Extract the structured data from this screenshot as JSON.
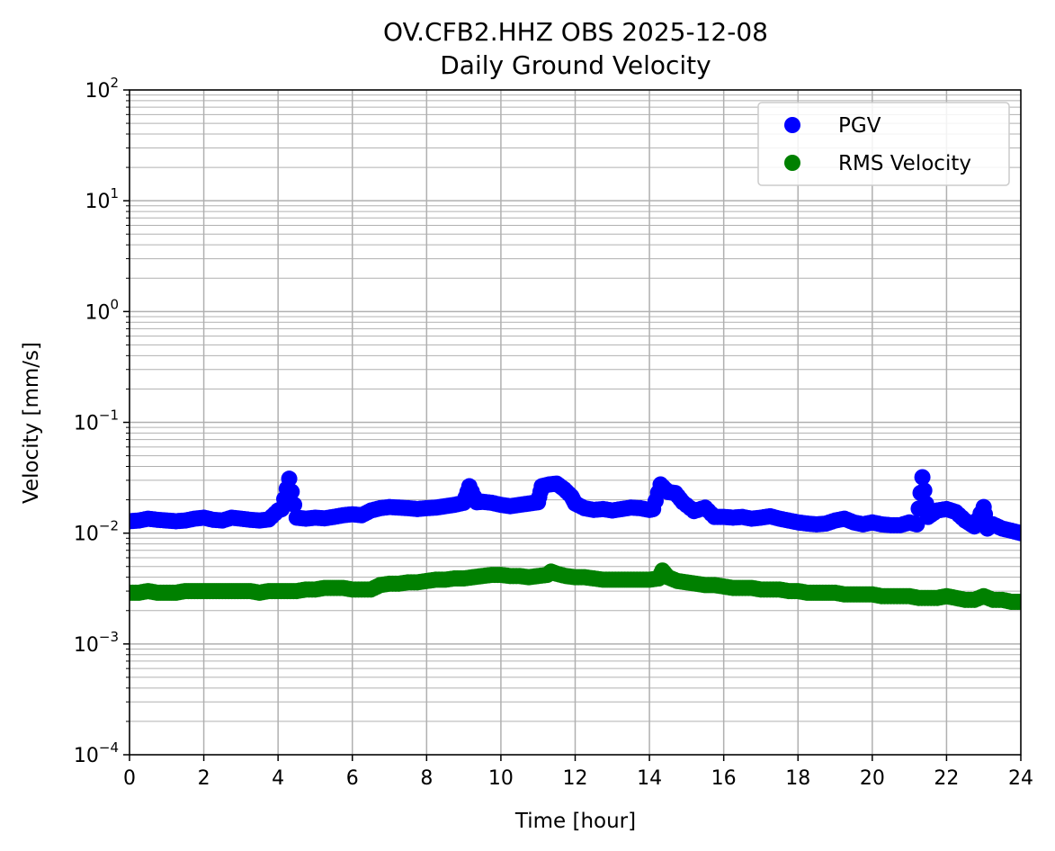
{
  "chart_data": {
    "type": "scatter",
    "title": "OV.CFB2.HHZ OBS 2025-12-08",
    "subtitle": "Daily Ground Velocity",
    "xlabel": "Time [hour]",
    "ylabel": "Velocity [mm/s]",
    "xlim": [
      0,
      24
    ],
    "ylim": [
      0.0001,
      100
    ],
    "yscale": "log",
    "grid": true,
    "legend_position": "top-right",
    "x_ticks": [
      "0",
      "2",
      "4",
      "6",
      "8",
      "10",
      "12",
      "14",
      "16",
      "18",
      "20",
      "22",
      "24"
    ],
    "y_ticks": [
      {
        "base": "10",
        "exp": "−4"
      },
      {
        "base": "10",
        "exp": "−3"
      },
      {
        "base": "10",
        "exp": "−2"
      },
      {
        "base": "10",
        "exp": "−1"
      },
      {
        "base": "10",
        "exp": "0"
      },
      {
        "base": "10",
        "exp": "1"
      },
      {
        "base": "10",
        "exp": "2"
      }
    ],
    "series": [
      {
        "name": "PGV",
        "color": "#0000ff",
        "points": [
          [
            0.0,
            0.0128
          ],
          [
            0.25,
            0.013
          ],
          [
            0.5,
            0.0135
          ],
          [
            0.75,
            0.0132
          ],
          [
            1.0,
            0.013
          ],
          [
            1.25,
            0.0128
          ],
          [
            1.5,
            0.013
          ],
          [
            1.75,
            0.0135
          ],
          [
            2.0,
            0.0138
          ],
          [
            2.25,
            0.0132
          ],
          [
            2.5,
            0.013
          ],
          [
            2.75,
            0.0138
          ],
          [
            3.0,
            0.0135
          ],
          [
            3.25,
            0.0132
          ],
          [
            3.5,
            0.013
          ],
          [
            3.75,
            0.0133
          ],
          [
            4.0,
            0.016
          ],
          [
            4.1,
            0.0165
          ],
          [
            4.3,
            0.031
          ],
          [
            4.5,
            0.0138
          ],
          [
            4.75,
            0.0135
          ],
          [
            5.0,
            0.0138
          ],
          [
            5.25,
            0.0136
          ],
          [
            5.5,
            0.014
          ],
          [
            5.75,
            0.0145
          ],
          [
            6.0,
            0.0148
          ],
          [
            6.25,
            0.0145
          ],
          [
            6.5,
            0.016
          ],
          [
            6.75,
            0.0168
          ],
          [
            7.0,
            0.0172
          ],
          [
            7.25,
            0.017
          ],
          [
            7.5,
            0.0168
          ],
          [
            7.75,
            0.0165
          ],
          [
            8.0,
            0.0168
          ],
          [
            8.25,
            0.017
          ],
          [
            8.5,
            0.0175
          ],
          [
            8.75,
            0.018
          ],
          [
            9.0,
            0.0188
          ],
          [
            9.15,
            0.0265
          ],
          [
            9.35,
            0.019
          ],
          [
            9.5,
            0.0192
          ],
          [
            9.75,
            0.0188
          ],
          [
            10.0,
            0.018
          ],
          [
            10.25,
            0.0175
          ],
          [
            10.5,
            0.018
          ],
          [
            10.75,
            0.0185
          ],
          [
            11.0,
            0.019
          ],
          [
            11.1,
            0.0265
          ],
          [
            11.3,
            0.0275
          ],
          [
            11.5,
            0.028
          ],
          [
            11.7,
            0.025
          ],
          [
            11.9,
            0.0215
          ],
          [
            12.0,
            0.0185
          ],
          [
            12.25,
            0.0168
          ],
          [
            12.5,
            0.0162
          ],
          [
            12.75,
            0.0165
          ],
          [
            13.0,
            0.016
          ],
          [
            13.25,
            0.0165
          ],
          [
            13.5,
            0.017
          ],
          [
            13.75,
            0.0168
          ],
          [
            14.0,
            0.0162
          ],
          [
            14.1,
            0.0165
          ],
          [
            14.3,
            0.0275
          ],
          [
            14.5,
            0.0235
          ],
          [
            14.7,
            0.023
          ],
          [
            14.9,
            0.019
          ],
          [
            15.2,
            0.0158
          ],
          [
            15.5,
            0.017
          ],
          [
            15.75,
            0.014
          ],
          [
            16.0,
            0.014
          ],
          [
            16.25,
            0.0138
          ],
          [
            16.5,
            0.014
          ],
          [
            16.75,
            0.0135
          ],
          [
            17.0,
            0.0138
          ],
          [
            17.25,
            0.0142
          ],
          [
            17.5,
            0.0135
          ],
          [
            17.75,
            0.013
          ],
          [
            18.0,
            0.0125
          ],
          [
            18.25,
            0.0122
          ],
          [
            18.5,
            0.012
          ],
          [
            18.75,
            0.0122
          ],
          [
            19.0,
            0.013
          ],
          [
            19.25,
            0.0135
          ],
          [
            19.5,
            0.0125
          ],
          [
            19.75,
            0.012
          ],
          [
            20.0,
            0.0125
          ],
          [
            20.25,
            0.012
          ],
          [
            20.5,
            0.0118
          ],
          [
            20.75,
            0.0118
          ],
          [
            21.0,
            0.0125
          ],
          [
            21.2,
            0.012
          ],
          [
            21.35,
            0.032
          ],
          [
            21.5,
            0.014
          ],
          [
            21.75,
            0.016
          ],
          [
            22.0,
            0.0165
          ],
          [
            22.25,
            0.0155
          ],
          [
            22.5,
            0.013
          ],
          [
            22.75,
            0.0115
          ],
          [
            23.0,
            0.0172
          ],
          [
            23.1,
            0.011
          ],
          [
            23.25,
            0.012
          ],
          [
            23.5,
            0.011
          ],
          [
            23.75,
            0.0105
          ],
          [
            24.0,
            0.01
          ]
        ]
      },
      {
        "name": "RMS Velocity",
        "color": "#008000",
        "points": [
          [
            0.0,
            0.0029
          ],
          [
            0.25,
            0.0029
          ],
          [
            0.5,
            0.003
          ],
          [
            0.75,
            0.0029
          ],
          [
            1.0,
            0.0029
          ],
          [
            1.25,
            0.0029
          ],
          [
            1.5,
            0.003
          ],
          [
            1.75,
            0.003
          ],
          [
            2.0,
            0.003
          ],
          [
            2.25,
            0.003
          ],
          [
            2.5,
            0.003
          ],
          [
            2.75,
            0.003
          ],
          [
            3.0,
            0.003
          ],
          [
            3.25,
            0.003
          ],
          [
            3.5,
            0.0029
          ],
          [
            3.75,
            0.003
          ],
          [
            4.0,
            0.003
          ],
          [
            4.25,
            0.003
          ],
          [
            4.5,
            0.003
          ],
          [
            4.75,
            0.0031
          ],
          [
            5.0,
            0.0031
          ],
          [
            5.25,
            0.0032
          ],
          [
            5.5,
            0.0032
          ],
          [
            5.75,
            0.0032
          ],
          [
            6.0,
            0.0031
          ],
          [
            6.25,
            0.0031
          ],
          [
            6.5,
            0.0031
          ],
          [
            6.75,
            0.0034
          ],
          [
            7.0,
            0.0035
          ],
          [
            7.25,
            0.0035
          ],
          [
            7.5,
            0.0036
          ],
          [
            7.75,
            0.0036
          ],
          [
            8.0,
            0.0037
          ],
          [
            8.25,
            0.0038
          ],
          [
            8.5,
            0.0038
          ],
          [
            8.75,
            0.0039
          ],
          [
            9.0,
            0.0039
          ],
          [
            9.25,
            0.004
          ],
          [
            9.5,
            0.0041
          ],
          [
            9.75,
            0.0042
          ],
          [
            10.0,
            0.0042
          ],
          [
            10.25,
            0.0041
          ],
          [
            10.5,
            0.0041
          ],
          [
            10.75,
            0.004
          ],
          [
            11.0,
            0.0041
          ],
          [
            11.25,
            0.0042
          ],
          [
            11.35,
            0.0045
          ],
          [
            11.5,
            0.0043
          ],
          [
            11.75,
            0.0041
          ],
          [
            12.0,
            0.004
          ],
          [
            12.25,
            0.004
          ],
          [
            12.5,
            0.0039
          ],
          [
            12.75,
            0.0038
          ],
          [
            13.0,
            0.0038
          ],
          [
            13.25,
            0.0038
          ],
          [
            13.5,
            0.0038
          ],
          [
            13.75,
            0.0038
          ],
          [
            14.0,
            0.0038
          ],
          [
            14.25,
            0.0039
          ],
          [
            14.35,
            0.0046
          ],
          [
            14.5,
            0.004
          ],
          [
            14.75,
            0.0037
          ],
          [
            15.0,
            0.0036
          ],
          [
            15.25,
            0.0035
          ],
          [
            15.5,
            0.0034
          ],
          [
            15.75,
            0.0034
          ],
          [
            16.0,
            0.0033
          ],
          [
            16.25,
            0.0032
          ],
          [
            16.5,
            0.0032
          ],
          [
            16.75,
            0.0032
          ],
          [
            17.0,
            0.0031
          ],
          [
            17.25,
            0.0031
          ],
          [
            17.5,
            0.0031
          ],
          [
            17.75,
            0.003
          ],
          [
            18.0,
            0.003
          ],
          [
            18.25,
            0.0029
          ],
          [
            18.5,
            0.0029
          ],
          [
            18.75,
            0.0029
          ],
          [
            19.0,
            0.0029
          ],
          [
            19.25,
            0.0028
          ],
          [
            19.5,
            0.0028
          ],
          [
            19.75,
            0.0028
          ],
          [
            20.0,
            0.0028
          ],
          [
            20.25,
            0.0027
          ],
          [
            20.5,
            0.0027
          ],
          [
            20.75,
            0.0027
          ],
          [
            21.0,
            0.0027
          ],
          [
            21.25,
            0.0026
          ],
          [
            21.5,
            0.0026
          ],
          [
            21.75,
            0.0026
          ],
          [
            22.0,
            0.0027
          ],
          [
            22.25,
            0.0026
          ],
          [
            22.5,
            0.0025
          ],
          [
            22.75,
            0.0025
          ],
          [
            23.0,
            0.0027
          ],
          [
            23.25,
            0.0025
          ],
          [
            23.5,
            0.0025
          ],
          [
            23.75,
            0.0024
          ],
          [
            24.0,
            0.0024
          ]
        ]
      }
    ]
  }
}
